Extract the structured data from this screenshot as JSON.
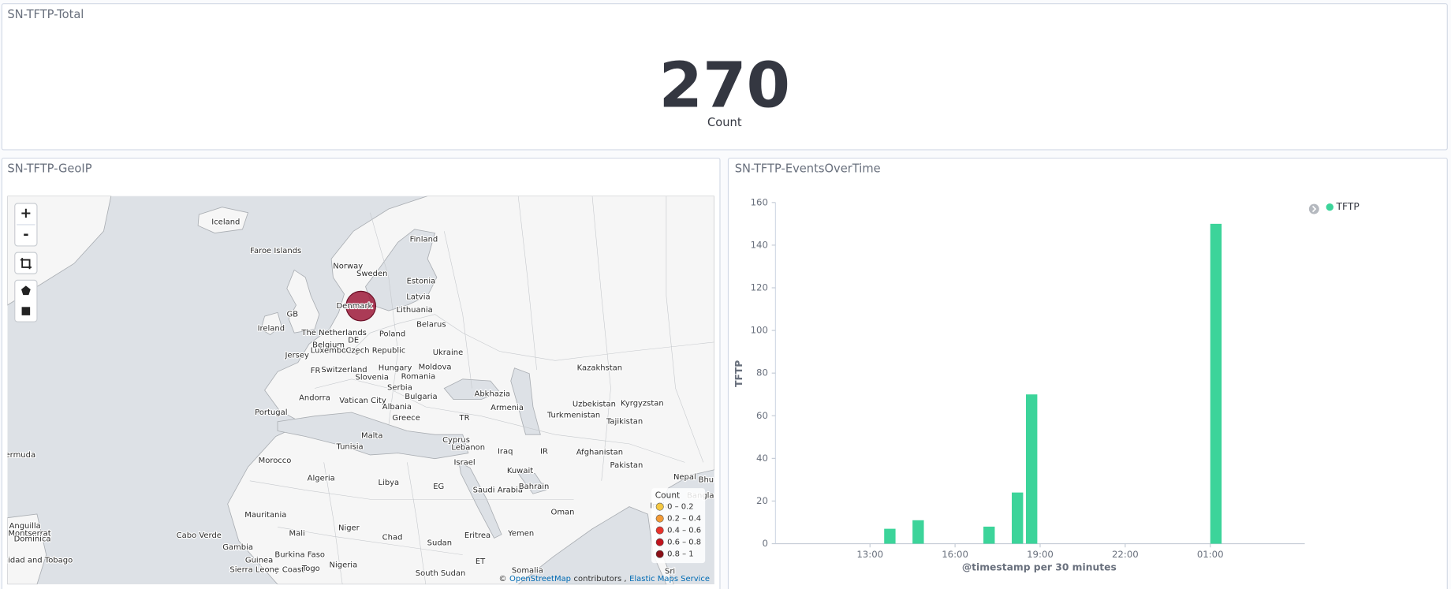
{
  "dashboard": {
    "total": {
      "title": "SN-TFTP-Total",
      "value": 270,
      "label": "Count"
    },
    "geoip": {
      "title": "SN-TFTP-GeoIP",
      "controls": [
        "+",
        "-"
      ],
      "labels": [
        "Iceland",
        "Faroe Islands",
        "Finland",
        "Norway",
        "Sweden",
        "Estonia",
        "Latvia",
        "Denmark",
        "Lithuania",
        "GB",
        "Ireland",
        "Belarus",
        "The Netherlands",
        "Poland",
        "DE",
        "Belgium",
        "Luxembourg",
        "Czech Republic",
        "Ukraine",
        "Jersey",
        "FR",
        "Switzerland",
        "Hungary",
        "Moldova",
        "Slovenia",
        "Romania",
        "Kazakhstan",
        "Serbia",
        "Andorra",
        "Vatican City",
        "Bulgaria",
        "Abkhazia",
        "Armenia",
        "Uzbekistan",
        "Kyrgyzstan",
        "Albania",
        "Portugal",
        "Greece",
        "TR",
        "Turkmenistan",
        "Tajikistan",
        "Malta",
        "Tunisia",
        "Cyprus",
        "Lebanon",
        "Iraq",
        "IR",
        "Afghanistan",
        "Pakistan",
        "Israel",
        "Kuwait",
        "Morocco",
        "Algeria",
        "Libya",
        "EG",
        "Saudi Arabia",
        "Bahrain",
        "Nepal",
        "Bhu",
        "India",
        "Bangla",
        "Oman",
        "Mauritania",
        "Mali",
        "Niger",
        "Chad",
        "Sudan",
        "Eritrea",
        "Yemen",
        "Cabo Verde",
        "Gambia",
        "Burkina Faso",
        "Nigeria",
        "Guinea",
        "Ivory Coast",
        "ET",
        "Somalia",
        "South Sudan",
        "Sierra Leone",
        "Togo",
        "Anguilla",
        "Montserrat",
        "Dominica",
        "Trinidad and Tobago",
        "ermuda",
        "Sri"
      ],
      "legend": {
        "title": "Count",
        "items": [
          {
            "label": "0 – 0.2",
            "color": "#f5c842"
          },
          {
            "label": "0.2 – 0.4",
            "color": "#f39a35"
          },
          {
            "label": "0.4 – 0.6",
            "color": "#e8322b"
          },
          {
            "label": "0.6 – 0.8",
            "color": "#c0141d"
          },
          {
            "label": "0.8 – 1",
            "color": "#8a0f17"
          }
        ]
      },
      "attribution": [
        {
          "text": "©",
          "link": false
        },
        {
          "text": "OpenStreetMap",
          "link": true
        },
        {
          "text": "contributors ,",
          "link": false
        },
        {
          "text": "Elastic Maps Service",
          "link": true
        }
      ]
    }
  },
  "chart_data": {
    "type": "bar",
    "title": "SN-TFTP-EventsOverTime",
    "x": [
      "13:30",
      "14:30",
      "17:00",
      "18:00",
      "18:30",
      "01:00"
    ],
    "series": [
      {
        "name": "TFTP",
        "color": "#3cd49a",
        "values": [
          7,
          11,
          8,
          24,
          70,
          150
        ]
      }
    ],
    "xlabel": "@timestamp per 30 minutes",
    "ylabel": "TFTP",
    "xlim": [
      "09:40",
      "04:20"
    ],
    "xticks": [
      "13:00",
      "16:00",
      "19:00",
      "22:00",
      "01:00"
    ],
    "ylim": [
      0,
      160
    ],
    "yticks": [
      0,
      20,
      40,
      60,
      80,
      100,
      120,
      140,
      160
    ]
  }
}
